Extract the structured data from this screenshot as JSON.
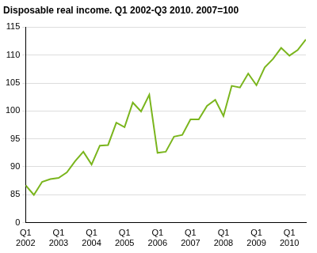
{
  "chart_data": {
    "type": "line",
    "title": "Disposable real income. Q1 2002-Q3 2010. 2007=100",
    "categories": [
      "Q1 2002",
      null,
      null,
      null,
      "Q1 2003",
      null,
      null,
      null,
      "Q1 2004",
      null,
      null,
      null,
      "Q1 2005",
      null,
      null,
      null,
      "Q1 2006",
      null,
      null,
      null,
      "Q1 2007",
      null,
      null,
      null,
      "Q1 2008",
      null,
      null,
      null,
      "Q1 2009",
      null,
      null,
      null,
      "Q1 2010",
      null,
      null
    ],
    "values": [
      86.7,
      84.5,
      87.3,
      87.8,
      88.0,
      89.0,
      91.0,
      92.7,
      90.4,
      93.8,
      93.9,
      97.9,
      97.1,
      101.5,
      99.9,
      102.9,
      92.5,
      92.7,
      95.4,
      95.7,
      98.5,
      98.5,
      100.9,
      102.0,
      99.1,
      104.5,
      104.2,
      106.7,
      104.6,
      107.8,
      109.3,
      111.3,
      109.9,
      110.9,
      112.8
    ],
    "color": "#7ab51d",
    "ylim": [
      0,
      115
    ],
    "yticks": [
      0,
      85,
      90,
      95,
      100,
      105,
      110,
      115
    ],
    "grid": true
  }
}
